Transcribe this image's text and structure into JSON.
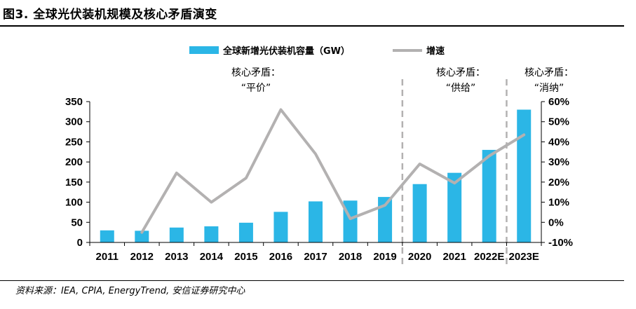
{
  "figure": {
    "title": "图3. 全球光伏装机规模及核心矛盾演变",
    "source": "资料来源：IEA, CPIA, EnergyTrend, 安信证券研究中心"
  },
  "chart_data": {
    "type": "bar",
    "title": "",
    "xlabel": "",
    "ylabel": "",
    "categories": [
      "2011",
      "2012",
      "2013",
      "2014",
      "2015",
      "2016",
      "2017",
      "2018",
      "2019",
      "2020",
      "2021",
      "2022E",
      "2023E"
    ],
    "series": [
      {
        "name": "全球新增光伏装机容量（GW）",
        "type": "bar",
        "axis": "left",
        "color": "#2bb6e6",
        "values": [
          30,
          29,
          37,
          40,
          49,
          76,
          102,
          104,
          113,
          145,
          173,
          230,
          330
        ]
      },
      {
        "name": "增速",
        "type": "line",
        "axis": "right",
        "color": "#b3b1b1",
        "values": [
          null,
          -5,
          24.5,
          10,
          22,
          56,
          34,
          1.8,
          8.5,
          29,
          19.5,
          33,
          43.5
        ]
      }
    ],
    "y_left": {
      "range": [
        0,
        350
      ],
      "ticks": [
        "0",
        "50",
        "100",
        "150",
        "200",
        "250",
        "300",
        "350"
      ]
    },
    "y_right": {
      "range": [
        -10,
        60
      ],
      "ticks": [
        "-10%",
        "0%",
        "10%",
        "20%",
        "30%",
        "40%",
        "50%",
        "60%"
      ]
    },
    "grid": false,
    "legend": "top-center",
    "dividers_after": [
      "2019",
      "2022E"
    ],
    "annotations": [
      {
        "line1": "核心矛盾：",
        "line2": "“平价”",
        "span": [
          "2011",
          "2019"
        ]
      },
      {
        "line1": "核心矛盾：",
        "line2": "“供给”",
        "span": [
          "2020",
          "2022E"
        ]
      },
      {
        "line1": "核心矛盾：",
        "line2": "“消纳”",
        "span": [
          "2023E",
          "2023E"
        ]
      }
    ]
  }
}
